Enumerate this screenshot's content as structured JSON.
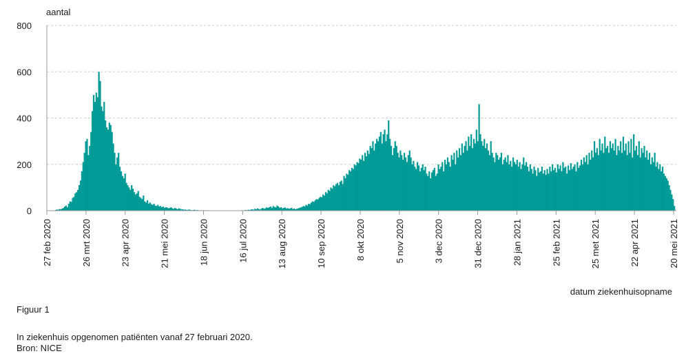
{
  "chart_data": {
    "type": "bar",
    "ylabel": "aantal",
    "xlabel": "datum ziekenhuisopname",
    "ylim": [
      0,
      800
    ],
    "yticks": [
      "0",
      "200",
      "400",
      "600",
      "800"
    ],
    "grid": "horizontal dashed",
    "bar_color": "#009b96",
    "x_tick_labels": [
      "27 feb 2020",
      "26 mrt 2020",
      "23 apr 2020",
      "21 mei 2020",
      "18 jun 2020",
      "16 jul 2020",
      "13 aug 2020",
      "10 sep 2020",
      "8 okt 2020",
      "5 nov 2020",
      "3 dec 2020",
      "31 dec 2020",
      "28 jan 2021",
      "25 feb 2021",
      "25 met 2021",
      "22 apr 2021",
      "20 mei 2021"
    ],
    "x_start": "2020-02-27",
    "x_end": "2021-05-22",
    "values": [
      0,
      0,
      1,
      3,
      5,
      4,
      7,
      6,
      9,
      12,
      18,
      22,
      15,
      30,
      40,
      38,
      55,
      60,
      75,
      80,
      90,
      110,
      130,
      170,
      210,
      250,
      300,
      310,
      240,
      280,
      340,
      430,
      500,
      470,
      510,
      490,
      600,
      560,
      450,
      430,
      470,
      390,
      360,
      350,
      380,
      370,
      340,
      290,
      250,
      200,
      230,
      250,
      190,
      170,
      150,
      140,
      160,
      120,
      110,
      100,
      90,
      110,
      95,
      80,
      70,
      75,
      85,
      60,
      55,
      50,
      65,
      40,
      35,
      45,
      30,
      35,
      28,
      25,
      30,
      22,
      20,
      25,
      18,
      20,
      15,
      18,
      12,
      15,
      14,
      10,
      12,
      15,
      10,
      8,
      12,
      9,
      6,
      10,
      8,
      5,
      6,
      4,
      5,
      3,
      4,
      5,
      3,
      2,
      3,
      4,
      2,
      3,
      2,
      1,
      2,
      1,
      2,
      1,
      1,
      2,
      1,
      1,
      0,
      1,
      1,
      0,
      1,
      0,
      1,
      0,
      0,
      1,
      0,
      0,
      0,
      0,
      1,
      0,
      0,
      0,
      1,
      0,
      1,
      1,
      0,
      2,
      1,
      2,
      3,
      2,
      4,
      3,
      5,
      6,
      4,
      8,
      6,
      10,
      7,
      5,
      9,
      12,
      8,
      10,
      14,
      12,
      15,
      18,
      12,
      20,
      16,
      14,
      22,
      18,
      12,
      15,
      10,
      12,
      14,
      9,
      11,
      8,
      10,
      12,
      7,
      9,
      6,
      8,
      10,
      12,
      14,
      16,
      20,
      18,
      25,
      22,
      30,
      28,
      35,
      40,
      38,
      45,
      50,
      48,
      55,
      60,
      58,
      70,
      65,
      80,
      75,
      90,
      85,
      100,
      95,
      110,
      105,
      115,
      120,
      110,
      125,
      130,
      115,
      150,
      140,
      160,
      155,
      175,
      170,
      185,
      180,
      200,
      195,
      210,
      205,
      225,
      220,
      240,
      215,
      250,
      235,
      260,
      245,
      280,
      270,
      300,
      260,
      290,
      310,
      300,
      320,
      340,
      290,
      330,
      350,
      300,
      330,
      390,
      310,
      280,
      240,
      270,
      300,
      280,
      250,
      230,
      260,
      240,
      220,
      250,
      230,
      210,
      240,
      260,
      230,
      200,
      215,
      190,
      180,
      210,
      195,
      170,
      185,
      200,
      175,
      190,
      160,
      150,
      170,
      140,
      165,
      175,
      185,
      150,
      160,
      200,
      180,
      190,
      210,
      170,
      220,
      200,
      230,
      210,
      190,
      240,
      220,
      250,
      200,
      260,
      230,
      270,
      240,
      290,
      250,
      280,
      300,
      260,
      320,
      280,
      330,
      270,
      310,
      290,
      350,
      300,
      460,
      330,
      300,
      280,
      310,
      270,
      290,
      260,
      240,
      300,
      250,
      230,
      210,
      250,
      240,
      220,
      230,
      250,
      200,
      220,
      230,
      210,
      240,
      200,
      215,
      190,
      230,
      210,
      200,
      220,
      190,
      210,
      180,
      200,
      230,
      195,
      210,
      190,
      170,
      200,
      180,
      160,
      190,
      175,
      150,
      185,
      165,
      170,
      190,
      160,
      175,
      155,
      180,
      160,
      190,
      170,
      200,
      175,
      185,
      165,
      200,
      180,
      195,
      170,
      210,
      185,
      190,
      160,
      195,
      175,
      205,
      180,
      190,
      200,
      170,
      210,
      185,
      195,
      220,
      200,
      230,
      210,
      240,
      200,
      250,
      220,
      260,
      230,
      300,
      250,
      270,
      240,
      310,
      260,
      290,
      250,
      320,
      270,
      280,
      250,
      300,
      270,
      290,
      260,
      310,
      240,
      280,
      260,
      300,
      250,
      320,
      260,
      290,
      240,
      300,
      250,
      310,
      230,
      330,
      260,
      280,
      240,
      300,
      230,
      270,
      250,
      280,
      230,
      260,
      220,
      250,
      200,
      230,
      210,
      250,
      190,
      210,
      180,
      200,
      170,
      190,
      160,
      150,
      140,
      130,
      110,
      90,
      70,
      50,
      20
    ]
  },
  "caption": {
    "figure_label": "Figuur 1",
    "description": "In ziekenhuis opgenomen patiënten vanaf 27 februari 2020.",
    "source": "Bron: NICE"
  }
}
